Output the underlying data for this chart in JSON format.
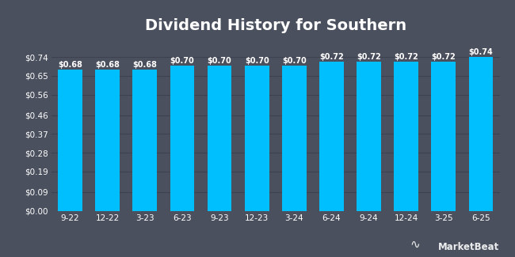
{
  "title": "Dividend History for Southern",
  "categories": [
    "9-22",
    "12-22",
    "3-23",
    "6-23",
    "9-23",
    "12-23",
    "3-24",
    "6-24",
    "9-24",
    "12-24",
    "3-25",
    "6-25"
  ],
  "values": [
    0.68,
    0.68,
    0.68,
    0.7,
    0.7,
    0.7,
    0.7,
    0.72,
    0.72,
    0.72,
    0.72,
    0.74
  ],
  "bar_color": "#00BFFF",
  "background_color": "#4b505e",
  "plot_bg_color": "#4b505e",
  "grid_color": "#3d4150",
  "text_color": "#ffffff",
  "title_fontsize": 14,
  "label_fontsize": 7,
  "tick_fontsize": 7.5,
  "ylim_max": 0.83,
  "yticks": [
    0.0,
    0.09,
    0.19,
    0.28,
    0.37,
    0.46,
    0.56,
    0.65,
    0.74
  ],
  "bar_width": 0.65,
  "watermark": "MarketBeat"
}
